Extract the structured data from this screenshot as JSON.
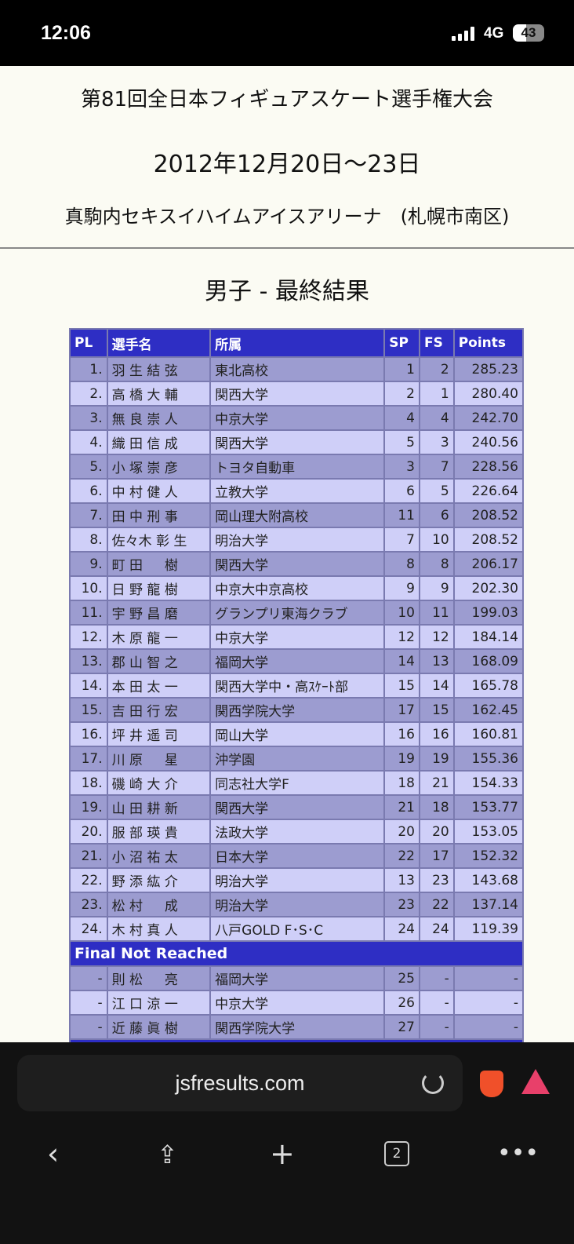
{
  "status": {
    "time": "12:06",
    "network": "4G",
    "battery": "43"
  },
  "header": {
    "title": "第81回全日本フィギュアスケート選手権大会",
    "dates": "2012年12月20日〜23日",
    "venue": "真駒内セキスイハイムアイスアリーナ　(札幌市南区)"
  },
  "section_title": "男子 - 最終結果",
  "table": {
    "columns": [
      "PL",
      "選手名",
      "所属",
      "SP",
      "FS",
      "Points"
    ],
    "rows": [
      [
        "1.",
        "羽 生 結 弦",
        "東北高校",
        "1",
        "2",
        "285.23"
      ],
      [
        "2.",
        "高 橋 大 輔",
        "関西大学",
        "2",
        "1",
        "280.40"
      ],
      [
        "3.",
        "無 良 崇 人",
        "中京大学",
        "4",
        "4",
        "242.70"
      ],
      [
        "4.",
        "織 田 信 成",
        "関西大学",
        "5",
        "3",
        "240.56"
      ],
      [
        "5.",
        "小 塚 崇 彦",
        "トヨタ自動車",
        "3",
        "7",
        "228.56"
      ],
      [
        "6.",
        "中 村 健 人",
        "立教大学",
        "6",
        "5",
        "226.64"
      ],
      [
        "7.",
        "田 中 刑 事",
        "岡山理大附高校",
        "11",
        "6",
        "208.52"
      ],
      [
        "8.",
        "佐々木 彰 生",
        "明治大学",
        "7",
        "10",
        "208.52"
      ],
      [
        "9.",
        "町 田 　 樹",
        "関西大学",
        "8",
        "8",
        "206.17"
      ],
      [
        "10.",
        "日 野 龍 樹",
        "中京大中京高校",
        "9",
        "9",
        "202.30"
      ],
      [
        "11.",
        "宇 野 昌 磨",
        "グランプリ東海クラブ",
        "10",
        "11",
        "199.03"
      ],
      [
        "12.",
        "木 原 龍 一",
        "中京大学",
        "12",
        "12",
        "184.14"
      ],
      [
        "13.",
        "郡 山 智 之",
        "福岡大学",
        "14",
        "13",
        "168.09"
      ],
      [
        "14.",
        "本 田 太 一",
        "関西大学中・高ｽｹｰﾄ部",
        "15",
        "14",
        "165.78"
      ],
      [
        "15.",
        "吉 田 行 宏",
        "関西学院大学",
        "17",
        "15",
        "162.45"
      ],
      [
        "16.",
        "坪 井 遥 司",
        "岡山大学",
        "16",
        "16",
        "160.81"
      ],
      [
        "17.",
        "川 原 　 星",
        "沖学園",
        "19",
        "19",
        "155.36"
      ],
      [
        "18.",
        "磯 崎 大 介",
        "同志社大学F",
        "18",
        "21",
        "154.33"
      ],
      [
        "19.",
        "山 田 耕 新",
        "関西大学",
        "21",
        "18",
        "153.77"
      ],
      [
        "20.",
        "服 部 瑛 貴",
        "法政大学",
        "20",
        "20",
        "153.05"
      ],
      [
        "21.",
        "小 沼 祐 太",
        "日本大学",
        "22",
        "17",
        "152.32"
      ],
      [
        "22.",
        "野 添 紘 介",
        "明治大学",
        "13",
        "23",
        "143.68"
      ],
      [
        "23.",
        "松 村 　 成",
        "明治大学",
        "23",
        "22",
        "137.14"
      ],
      [
        "24.",
        "木 村 真 人",
        "八戸GOLD F･S･C",
        "24",
        "24",
        "119.39"
      ]
    ],
    "not_reached_label": "Final Not Reached",
    "not_reached": [
      [
        "-",
        "則 松 　 亮",
        "福岡大学",
        "25",
        "-",
        "-"
      ],
      [
        "-",
        "江 口 涼 一",
        "中京大学",
        "26",
        "-",
        "-"
      ],
      [
        "-",
        "近 藤 眞 樹",
        "関西学院大学",
        "27",
        "-",
        "-"
      ]
    ]
  },
  "browser": {
    "url": "jsfresults.com",
    "tab_count": "2"
  },
  "colors": {
    "header_blue": "#2e2ec4",
    "row_dark": "#9c9cd0",
    "row_light": "#cfcff8"
  }
}
